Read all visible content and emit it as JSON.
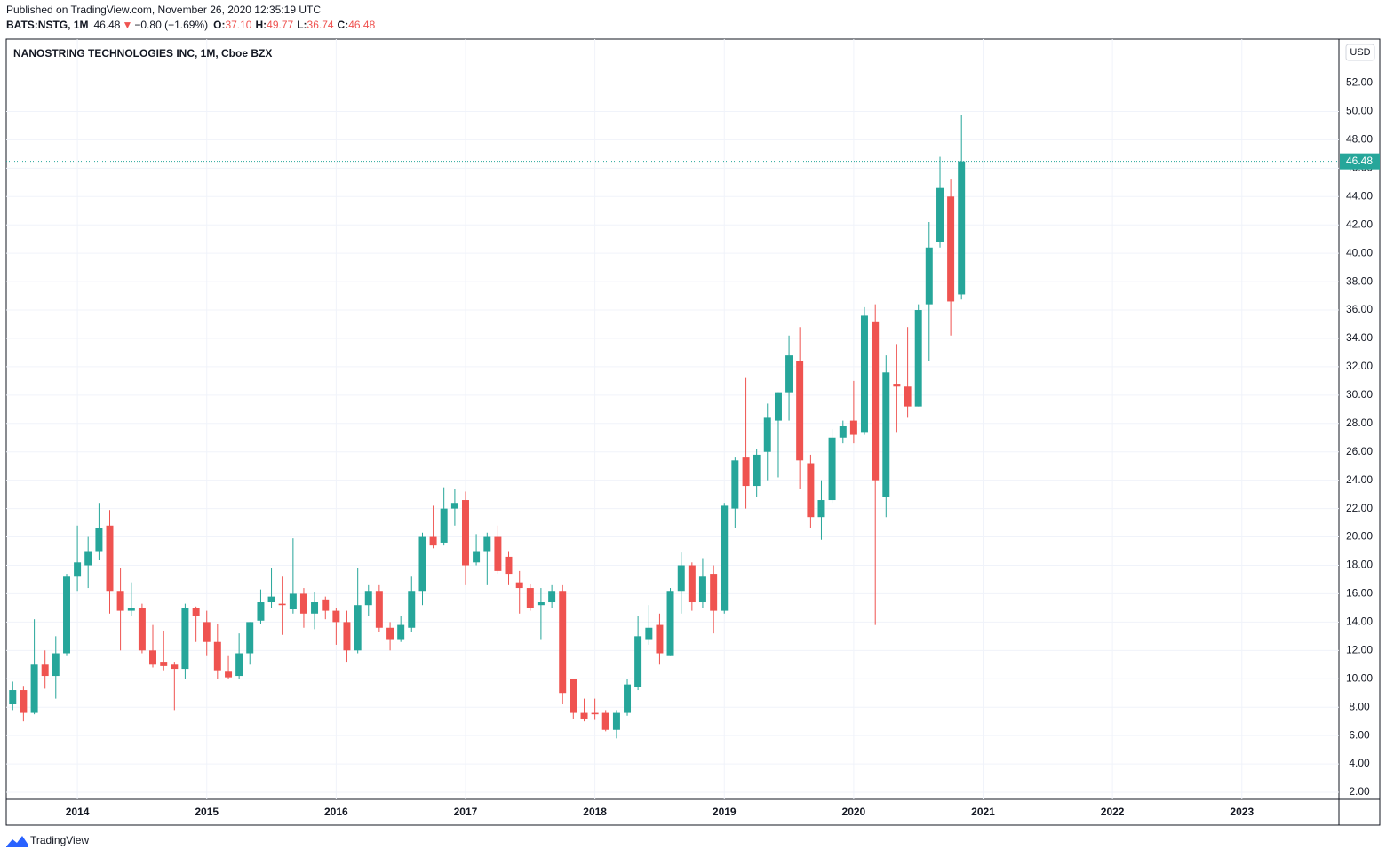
{
  "header": {
    "published": "Published on TradingView.com, November 26, 2020 12:35:19 UTC",
    "symbol": "BATS:NSTG, 1M",
    "last": "46.48",
    "arrow": "▼",
    "change": "−0.80 (−1.69%)",
    "ohlc": [
      {
        "label": "O:",
        "value": "37.10"
      },
      {
        "label": "H:",
        "value": "49.77"
      },
      {
        "label": "L:",
        "value": "36.74"
      },
      {
        "label": "C:",
        "value": "46.48"
      }
    ]
  },
  "chart_data": {
    "type": "candlestick",
    "title": "NANOSTRING TECHNOLOGIES INC, 1M, Cboe BZX",
    "currency": "USD",
    "up_color": "#26a69a",
    "down_color": "#ef5350",
    "x": [
      2013.5,
      2013.583,
      2013.667,
      2013.75,
      2013.833,
      2013.917,
      2014,
      2014.083,
      2014.167,
      2014.25,
      2014.333,
      2014.417,
      2014.5,
      2014.583,
      2014.667,
      2014.75,
      2014.833,
      2014.917,
      2015,
      2015.083,
      2015.167,
      2015.25,
      2015.333,
      2015.417,
      2015.5,
      2015.583,
      2015.667,
      2015.75,
      2015.833,
      2015.917,
      2016,
      2016.083,
      2016.167,
      2016.25,
      2016.333,
      2016.417,
      2016.5,
      2016.583,
      2016.667,
      2016.75,
      2016.833,
      2016.917,
      2017,
      2017.083,
      2017.167,
      2017.25,
      2017.333,
      2017.417,
      2017.5,
      2017.583,
      2017.667,
      2017.75,
      2017.833,
      2017.917,
      2018,
      2018.083,
      2018.167,
      2018.25,
      2018.333,
      2018.417,
      2018.5,
      2018.583,
      2018.667,
      2018.75,
      2018.833,
      2018.917,
      2019,
      2019.083,
      2019.167,
      2019.25,
      2019.333,
      2019.417,
      2019.5,
      2019.583,
      2019.667,
      2019.75,
      2019.833,
      2019.917,
      2020,
      2020.083,
      2020.167,
      2020.25,
      2020.333,
      2020.417,
      2020.5,
      2020.583,
      2020.667,
      2020.75,
      2020.833
    ],
    "open": [
      8.2,
      9.2,
      7.6,
      11.0,
      10.2,
      11.8,
      17.2,
      18.0,
      19.0,
      20.8,
      16.2,
      14.8,
      15.0,
      12.0,
      11.2,
      11.0,
      10.7,
      15.0,
      14.0,
      12.6,
      10.5,
      10.2,
      11.8,
      14.1,
      15.4,
      15.3,
      14.9,
      16.0,
      14.6,
      15.6,
      14.8,
      14.0,
      12.0,
      15.2,
      16.2,
      13.6,
      12.8,
      13.6,
      16.2,
      20.0,
      19.6,
      22.0,
      22.6,
      18.2,
      19.0,
      20.0,
      18.6,
      16.8,
      16.4,
      15.2,
      15.4,
      16.2,
      10.0,
      7.6,
      7.6,
      7.6,
      6.4,
      7.6,
      9.4,
      12.8,
      13.8,
      11.6,
      16.2,
      18.0,
      15.4,
      17.4,
      14.8,
      22.0,
      25.6,
      23.6,
      26.0,
      28.2,
      30.2,
      32.4,
      25.2,
      21.4,
      22.6,
      27.0,
      28.2,
      27.4,
      35.2,
      22.8,
      30.8,
      30.6,
      29.2,
      36.4,
      40.8,
      44.0,
      37.1
    ],
    "high": [
      9.8,
      9.5,
      14.2,
      12.0,
      13.0,
      17.4,
      20.8,
      20.0,
      22.4,
      21.9,
      17.8,
      16.8,
      15.3,
      13.8,
      13.4,
      11.2,
      15.3,
      15.1,
      14.8,
      13.9,
      11.6,
      13.2,
      14.0,
      16.3,
      17.8,
      17.2,
      19.9,
      16.4,
      16.1,
      15.8,
      15.0,
      14.8,
      17.8,
      16.6,
      16.6,
      14.0,
      14.4,
      17.2,
      20.3,
      22.2,
      23.5,
      23.4,
      23.2,
      20.2,
      20.3,
      20.8,
      19.0,
      17.6,
      16.7,
      16.4,
      16.6,
      16.6,
      10.0,
      8.6,
      8.6,
      7.8,
      7.8,
      10.0,
      14.4,
      15.2,
      14.6,
      16.4,
      18.9,
      18.2,
      18.5,
      18.0,
      22.4,
      25.6,
      31.2,
      26.2,
      29.4,
      30.2,
      34.2,
      34.8,
      25.8,
      24.0,
      27.6,
      28.2,
      31.0,
      36.2,
      36.4,
      32.8,
      33.6,
      34.8,
      36.4,
      42.2,
      46.8,
      45.2,
      49.77
    ],
    "low": [
      7.8,
      7.0,
      7.5,
      9.3,
      8.6,
      11.6,
      16.2,
      16.4,
      18.4,
      14.6,
      12.0,
      14.4,
      11.8,
      10.8,
      10.6,
      7.8,
      10.0,
      12.6,
      11.6,
      10.0,
      10.0,
      10.0,
      11.0,
      13.9,
      15.0,
      13.1,
      14.6,
      13.6,
      13.5,
      14.2,
      12.4,
      11.2,
      11.8,
      14.4,
      13.3,
      12.0,
      12.6,
      13.3,
      15.2,
      19.2,
      19.4,
      20.8,
      16.6,
      18.0,
      16.6,
      17.4,
      16.6,
      14.6,
      14.8,
      12.8,
      15.0,
      8.2,
      7.2,
      7.0,
      7.1,
      6.3,
      5.8,
      7.4,
      9.2,
      12.4,
      11.0,
      11.6,
      14.6,
      14.8,
      15.0,
      13.2,
      14.6,
      20.6,
      22.0,
      22.8,
      24.0,
      24.2,
      28.2,
      23.4,
      20.6,
      19.8,
      22.4,
      26.6,
      26.6,
      27.2,
      13.8,
      21.4,
      27.4,
      28.4,
      29.2,
      32.4,
      40.4,
      34.2,
      36.74
    ],
    "close": [
      9.2,
      7.6,
      11.0,
      10.2,
      11.8,
      17.2,
      18.2,
      19.0,
      20.6,
      16.2,
      14.8,
      15.0,
      12.0,
      11.0,
      10.9,
      10.7,
      15.0,
      14.4,
      12.6,
      10.6,
      10.1,
      11.8,
      14.0,
      15.4,
      15.8,
      15.2,
      16.0,
      14.6,
      15.4,
      14.8,
      14.0,
      12.0,
      15.2,
      16.2,
      13.6,
      12.8,
      13.8,
      16.2,
      20.0,
      19.4,
      22.0,
      22.4,
      18.0,
      19.0,
      20.0,
      17.6,
      17.4,
      16.4,
      15.0,
      15.4,
      16.2,
      9.0,
      7.6,
      7.2,
      7.5,
      6.4,
      7.6,
      9.6,
      13.0,
      13.6,
      11.8,
      16.2,
      18.0,
      15.4,
      17.2,
      14.8,
      22.2,
      25.4,
      23.6,
      25.8,
      28.4,
      30.2,
      32.8,
      25.4,
      21.4,
      22.6,
      27.0,
      27.8,
      27.2,
      35.6,
      24.0,
      31.6,
      30.6,
      29.2,
      36.0,
      40.4,
      44.6,
      36.6,
      46.48
    ],
    "xlim": [
      2013.45,
      2023.75
    ],
    "xticks": [
      2014,
      2015,
      2016,
      2017,
      2018,
      2019,
      2020,
      2021,
      2022,
      2023
    ],
    "ylim": [
      1.5,
      55.1
    ],
    "yticks": [
      {
        "value": 2,
        "label": "2.00"
      },
      {
        "value": 4,
        "label": "4.00"
      },
      {
        "value": 6,
        "label": "6.00"
      },
      {
        "value": 8,
        "label": "8.00"
      },
      {
        "value": 10,
        "label": "10.00"
      },
      {
        "value": 12,
        "label": "12.00"
      },
      {
        "value": 14,
        "label": "14.00"
      },
      {
        "value": 16,
        "label": "16.00"
      },
      {
        "value": 18,
        "label": "18.00"
      },
      {
        "value": 20,
        "label": "20.00"
      },
      {
        "value": 22,
        "label": "22.00"
      },
      {
        "value": 24,
        "label": "24.00"
      },
      {
        "value": 26,
        "label": "26.00"
      },
      {
        "value": 28,
        "label": "28.00"
      },
      {
        "value": 30,
        "label": "30.00"
      },
      {
        "value": 32,
        "label": "32.00"
      },
      {
        "value": 34,
        "label": "34.00"
      },
      {
        "value": 36,
        "label": "36.00"
      },
      {
        "value": 38,
        "label": "38.00"
      },
      {
        "value": 40,
        "label": "40.00"
      },
      {
        "value": 42,
        "label": "42.00"
      },
      {
        "value": 44,
        "label": "44.00"
      },
      {
        "value": 46,
        "label": "46.00"
      },
      {
        "value": 48,
        "label": "48.00"
      },
      {
        "value": 50,
        "label": "50.00"
      },
      {
        "value": 52,
        "label": "52.00"
      }
    ],
    "grid": true
  },
  "footer": {
    "brand": "TradingView"
  }
}
